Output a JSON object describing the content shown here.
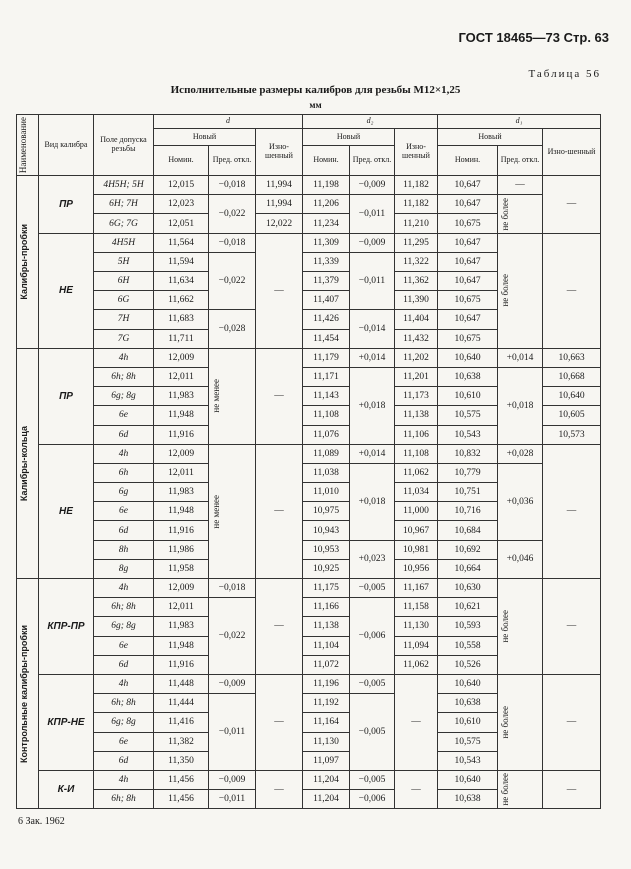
{
  "header": {
    "standard": "ГОСТ 18465—73 Стр. 63",
    "table_number": "Таблица 56",
    "title": "Исполнительные размеры калибров для резьбы М12×1,25",
    "unit": "мм"
  },
  "table": {
    "columns": {
      "name": "Наименование",
      "kind": "Вид калибра",
      "field": "Поле допуска резьбы",
      "d": "d",
      "d2": "d₂",
      "d1": "d₁",
      "new": "Новый",
      "worn": "Изно-шенный",
      "nominal": "Номин.",
      "deviation": "Пред. откл."
    },
    "rows": [
      [
        "Калибры-пробки",
        "ПР",
        "4H5H; 5H",
        "12,015",
        "−0,018",
        "11,994",
        "11,198",
        "−0,009",
        "11,182",
        "10,647",
        "—",
        "—"
      ],
      [
        "6H; 7H",
        "12,023",
        "−0,022",
        "11,994",
        "11,206",
        "−0,011",
        "11,182",
        "10,647",
        "не более"
      ],
      [
        "6G; 7G",
        "12,051",
        "12,022",
        "11,234",
        "11,210",
        "10,675"
      ],
      [
        "НЕ",
        "4H5H",
        "11,564",
        "−0,018",
        "—",
        "11,309",
        "−0,009",
        "11,295",
        "10,647",
        "не более",
        "—"
      ],
      [
        "5H",
        "11,594",
        "−0,022",
        "11,339",
        "−0,011",
        "11,322",
        "10,647"
      ],
      [
        "6H",
        "11,634",
        "11,379",
        "11,362",
        "10,647"
      ],
      [
        "6G",
        "11,662",
        "11,407",
        "11,390",
        "10,675"
      ],
      [
        "7H",
        "11,683",
        "−0,028",
        "11,426",
        "−0,014",
        "11,404",
        "10,647"
      ],
      [
        "7G",
        "11,711",
        "11,454",
        "11,432",
        "10,675"
      ],
      [
        "Калибры-кольца",
        "ПР",
        "4h",
        "12,009",
        "не менее",
        "—",
        "11,179",
        "+0,014",
        "11,202",
        "10,640",
        "+0,014",
        "10,663"
      ],
      [
        "6h; 8h",
        "12,011",
        "11,171",
        "+0,018",
        "11,201",
        "10,638",
        "+0,018",
        "10,668"
      ],
      [
        "6g; 8g",
        "11,983",
        "11,143",
        "11,173",
        "10,610",
        "10,640"
      ],
      [
        "6e",
        "11,948",
        "11,108",
        "11,138",
        "10,575",
        "10,605"
      ],
      [
        "6d",
        "11,916",
        "11,076",
        "11,106",
        "10,543",
        "10,573"
      ],
      [
        "НЕ",
        "4h",
        "12,009",
        "не менее",
        "—",
        "11,089",
        "+0,014",
        "11,108",
        "10,832",
        "+0,028",
        "—"
      ],
      [
        "6h",
        "12,011",
        "11,038",
        "+0,018",
        "11,062",
        "10,779",
        "+0,036"
      ],
      [
        "6g",
        "11,983",
        "11,010",
        "11,034",
        "10,751"
      ],
      [
        "6e",
        "11,948",
        "10,975",
        "11,000",
        "10,716"
      ],
      [
        "6d",
        "11,916",
        "10,943",
        "10,967",
        "10,684"
      ],
      [
        "8h",
        "11,986",
        "10,953",
        "+0,023",
        "10,981",
        "10,692",
        "+0,046"
      ],
      [
        "8g",
        "11,958",
        "10,925",
        "10,956",
        "10,664"
      ],
      [
        "Контрольные калибры-пробки",
        "КПР-ПР",
        "4h",
        "12,009",
        "−0,018",
        "—",
        "11,175",
        "−0,005",
        "11,167",
        "10,630",
        "не более",
        "—"
      ],
      [
        "6h; 8h",
        "12,011",
        "−0,022",
        "11,166",
        "−0,006",
        "11,158",
        "10,621"
      ],
      [
        "6g; 8g",
        "11,983",
        "11,138",
        "11,130",
        "10,593"
      ],
      [
        "6e",
        "11,948",
        "11,104",
        "11,094",
        "10,558"
      ],
      [
        "6d",
        "11,916",
        "11,072",
        "11,062",
        "10,526"
      ],
      [
        "КПР-НЕ",
        "4h",
        "11,448",
        "−0,009",
        "—",
        "11,196",
        "−0,005",
        "—",
        "10,640",
        "не более",
        "—"
      ],
      [
        "6h; 8h",
        "11,444",
        "−0,011",
        "11,192",
        "−0,005",
        "10,638"
      ],
      [
        "6g; 8g",
        "11,416",
        "11,164",
        "10,610"
      ],
      [
        "6e",
        "11,382",
        "11,130",
        "10,575"
      ],
      [
        "6d",
        "11,350",
        "11,097",
        "10,543"
      ],
      [
        "К-И",
        "4h",
        "11,456",
        "−0,009",
        "—",
        "11,204",
        "−0,005",
        "—",
        "10,640",
        "не более",
        "—"
      ],
      [
        "6h; 8h",
        "11,456",
        "−0,011",
        "11,204",
        "−0,006",
        "10,638"
      ]
    ]
  },
  "footer": "6 Зак. 1962"
}
